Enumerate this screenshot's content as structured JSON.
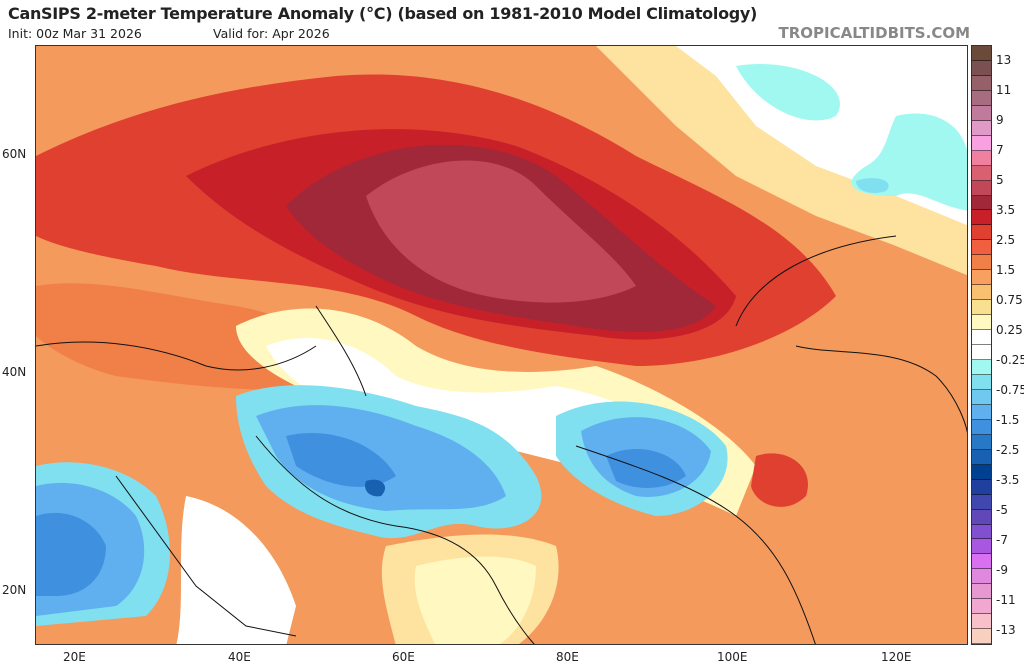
{
  "header": {
    "title": "CanSIPS 2-meter Temperature Anomaly (°C) (based on 1981-2010 Model Climatology)",
    "init": "Init: 00z Mar 31 2026",
    "valid": "Valid for: Apr 2026",
    "site": "TROPICALTIDBITS.COM"
  },
  "axes": {
    "lat_labels": [
      "60N",
      "40N",
      "20N"
    ],
    "lon_labels": [
      "20E",
      "40E",
      "60E",
      "80E",
      "100E",
      "120E"
    ]
  },
  "colorbar": {
    "ticks": [
      "13",
      "11",
      "9",
      "7",
      "5",
      "3.5",
      "2.5",
      "1.5",
      "0.75",
      "0.25",
      "-0.25",
      "-0.75",
      "-1.5",
      "-2.5",
      "-3.5",
      "-5",
      "-7",
      "-9",
      "-11",
      "-13"
    ],
    "colors": [
      "#6b4a3a",
      "#7a5050",
      "#96606a",
      "#a86c80",
      "#c07a9c",
      "#e09ac8",
      "#f8a0e0",
      "#f080a0",
      "#d86070",
      "#c04858",
      "#a02838",
      "#c82028",
      "#e04030",
      "#f06040",
      "#f08048",
      "#f8a060",
      "#f8c070",
      "#f8e090",
      "#fff8c0",
      "#ffffff",
      "#ffffff",
      "#a0f8f0",
      "#80e0f0",
      "#70c8f0",
      "#60b0f0",
      "#4090e0",
      "#2878c8",
      "#1860b0",
      "#004090",
      "#2040a0",
      "#4048b0",
      "#6048b8",
      "#8050d0",
      "#a858e0",
      "#d870f0",
      "#e088e0",
      "#e898d0",
      "#f0a8d0",
      "#f8c0c8",
      "#f8d0c0"
    ]
  }
}
